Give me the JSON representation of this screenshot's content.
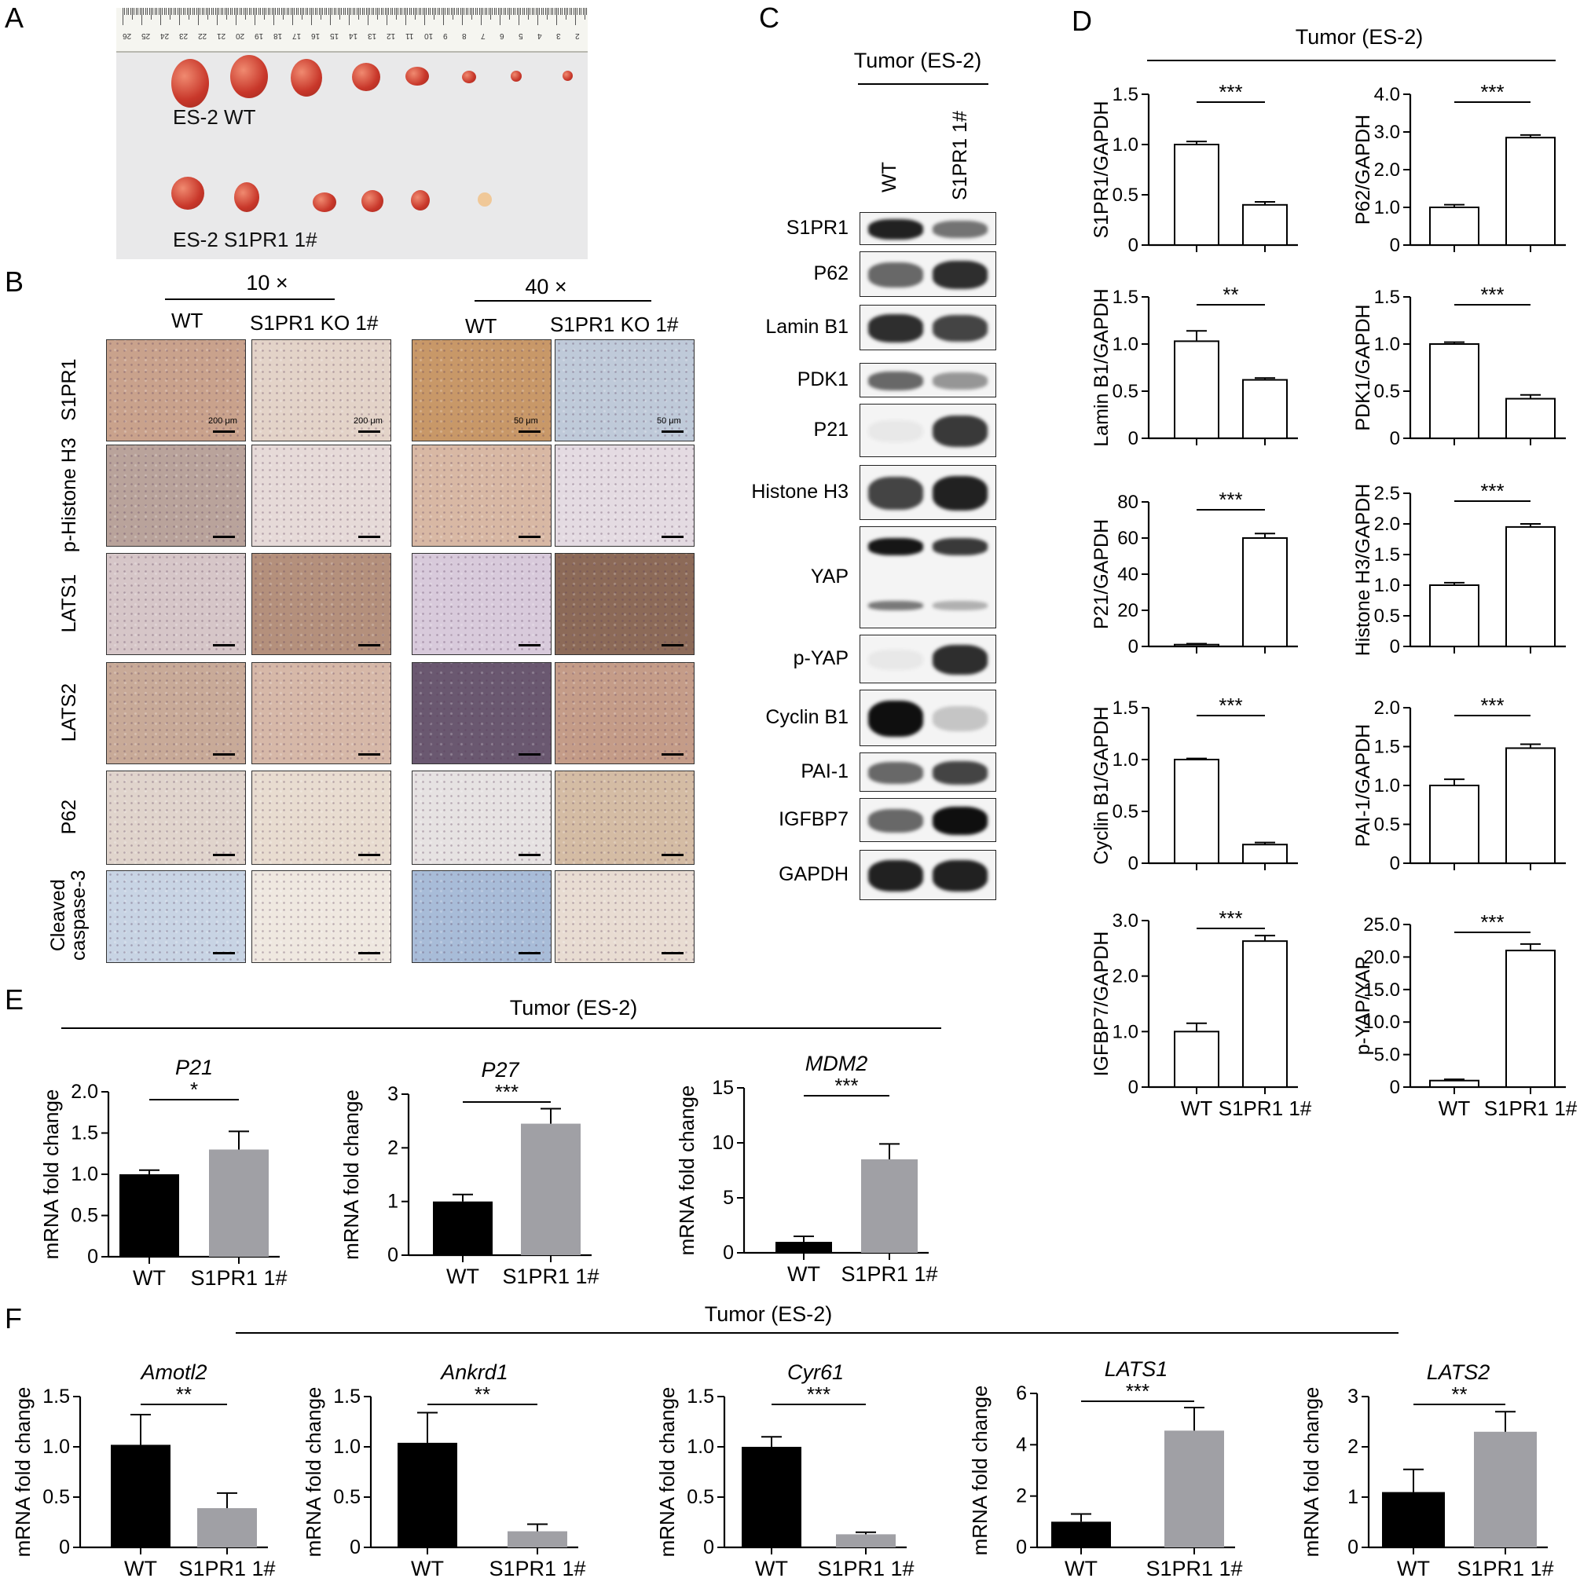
{
  "panel_letters": [
    "A",
    "B",
    "C",
    "D",
    "E",
    "F"
  ],
  "panelA": {
    "row_labels": [
      "ES-2 WT",
      "ES-2 S1PR1 1#"
    ],
    "ruler_numbers": [
      "26",
      "25",
      "24",
      "23",
      "22",
      "21",
      "20",
      "19",
      "18",
      "17",
      "16",
      "15",
      "14",
      "13",
      "12",
      "11",
      "10",
      "9",
      "8",
      "7",
      "6",
      "5",
      "4",
      "3",
      "2"
    ]
  },
  "panelB": {
    "mag_labels": [
      "10 ×",
      "40 ×"
    ],
    "col_labels": [
      "WT",
      "S1PR1 KO 1#",
      "WT",
      "S1PR1 KO 1#"
    ],
    "row_labels": [
      "S1PR1",
      "p-Histone H3",
      "LATS1",
      "LATS2",
      "P62",
      "Cleaved caspase-3"
    ],
    "scale_labels": [
      "200 μm",
      "200 μm",
      "50 μm",
      "50 μm"
    ]
  },
  "panelC": {
    "title": "Tumor (ES-2)",
    "lanes": [
      "WT",
      "S1PR1 1#"
    ],
    "proteins": [
      "S1PR1",
      "P62",
      "Lamin B1",
      "PDK1",
      "P21",
      "Histone H3",
      "YAP",
      "p-YAP",
      "Cyclin B1",
      "PAI-1",
      "IGFBP7",
      "GAPDH"
    ]
  },
  "panelD_title": "Tumor (ES-2)",
  "panelE_title": "Tumor (ES-2)",
  "panelF_title": "Tumor (ES-2)",
  "colors": {
    "wt_bar": "#000000",
    "ko_bar": "#a0a0a5",
    "open_bar": "#ffffff"
  },
  "chart_data": [
    {
      "id": "D1",
      "panel": "D",
      "type": "bar",
      "ylabel": "S1PR1/GAPDH",
      "categories": [
        "WT",
        "S1PR1 1#"
      ],
      "values": [
        1.0,
        0.4
      ],
      "errors": [
        0.03,
        0.03
      ],
      "ylim": [
        0,
        1.5
      ],
      "yticks": [
        "0",
        "0.5",
        "1.0",
        "1.5"
      ],
      "sig": "***",
      "style": "open",
      "show_xlabels": false
    },
    {
      "id": "D2",
      "panel": "D",
      "type": "bar",
      "ylabel": "P62/GAPDH",
      "categories": [
        "WT",
        "S1PR1 1#"
      ],
      "values": [
        1.0,
        2.85
      ],
      "errors": [
        0.07,
        0.07
      ],
      "ylim": [
        0,
        4.0
      ],
      "yticks": [
        "0",
        "1.0",
        "2.0",
        "3.0",
        "4.0"
      ],
      "sig": "***",
      "style": "open",
      "show_xlabels": false
    },
    {
      "id": "D3",
      "panel": "D",
      "type": "bar",
      "ylabel": "Lamin B1/GAPDH",
      "categories": [
        "WT",
        "S1PR1 1#"
      ],
      "values": [
        1.03,
        0.62
      ],
      "errors": [
        0.11,
        0.02
      ],
      "ylim": [
        0,
        1.5
      ],
      "yticks": [
        "0",
        "0.5",
        "1.0",
        "1.5"
      ],
      "sig": "**",
      "style": "open",
      "show_xlabels": false
    },
    {
      "id": "D4",
      "panel": "D",
      "type": "bar",
      "ylabel": "PDK1/GAPDH",
      "categories": [
        "WT",
        "S1PR1 1#"
      ],
      "values": [
        1.0,
        0.42
      ],
      "errors": [
        0.02,
        0.04
      ],
      "ylim": [
        0,
        1.5
      ],
      "yticks": [
        "0",
        "0.5",
        "1.0",
        "1.5"
      ],
      "sig": "***",
      "style": "open",
      "show_xlabels": false
    },
    {
      "id": "D5",
      "panel": "D",
      "type": "bar",
      "ylabel": "P21/GAPDH",
      "categories": [
        "WT",
        "S1PR1 1#"
      ],
      "values": [
        1.0,
        60
      ],
      "errors": [
        0.5,
        2.5
      ],
      "ylim": [
        0,
        80
      ],
      "yticks": [
        "0",
        "20",
        "40",
        "60",
        "80"
      ],
      "sig": "***",
      "style": "open",
      "show_xlabels": false
    },
    {
      "id": "D6",
      "panel": "D",
      "type": "bar",
      "ylabel": "Histone H3/GAPDH",
      "categories": [
        "WT",
        "S1PR1 1#"
      ],
      "values": [
        1.0,
        1.95
      ],
      "errors": [
        0.04,
        0.05
      ],
      "ylim": [
        0,
        2.5
      ],
      "yticks": [
        "0",
        "0.5",
        "1.0",
        "1.5",
        "2.0",
        "2.5"
      ],
      "sig": "***",
      "style": "open",
      "show_xlabels": false
    },
    {
      "id": "D7",
      "panel": "D",
      "type": "bar",
      "ylabel": "Cyclin B1/GAPDH",
      "categories": [
        "WT",
        "S1PR1 1#"
      ],
      "values": [
        1.0,
        0.18
      ],
      "errors": [
        0.01,
        0.02
      ],
      "ylim": [
        0,
        1.5
      ],
      "yticks": [
        "0",
        "0.5",
        "1.0",
        "1.5"
      ],
      "sig": "***",
      "style": "open",
      "show_xlabels": false
    },
    {
      "id": "D8",
      "panel": "D",
      "type": "bar",
      "ylabel": "PAI-1/GAPDH",
      "categories": [
        "WT",
        "S1PR1 1#"
      ],
      "values": [
        1.0,
        1.48
      ],
      "errors": [
        0.08,
        0.05
      ],
      "ylim": [
        0,
        2.0
      ],
      "yticks": [
        "0",
        "0.5",
        "1.0",
        "1.5",
        "2.0"
      ],
      "sig": "***",
      "style": "open",
      "show_xlabels": false
    },
    {
      "id": "D9",
      "panel": "D",
      "type": "bar",
      "ylabel": "IGFBP7/GAPDH",
      "categories": [
        "WT",
        "S1PR1 1#"
      ],
      "values": [
        1.0,
        2.63
      ],
      "errors": [
        0.15,
        0.1
      ],
      "ylim": [
        0,
        3.0
      ],
      "yticks": [
        "0",
        "1.0",
        "2.0",
        "3.0"
      ],
      "sig": "***",
      "style": "open",
      "show_xlabels": true
    },
    {
      "id": "D10",
      "panel": "D",
      "type": "bar",
      "ylabel": "p-YAP/YAP",
      "categories": [
        "WT",
        "S1PR1 1#"
      ],
      "values": [
        1.0,
        21.0
      ],
      "errors": [
        0.2,
        1.0
      ],
      "ylim": [
        0,
        25.0
      ],
      "yticks": [
        "0",
        "5.0",
        "10.0",
        "15.0",
        "20.0",
        "25.0"
      ],
      "sig": "***",
      "style": "open",
      "show_xlabels": true
    },
    {
      "id": "E1",
      "panel": "E",
      "type": "bar",
      "title": "P21",
      "ylabel": "mRNA fold change",
      "categories": [
        "WT",
        "S1PR1 1#"
      ],
      "values": [
        1.0,
        1.3
      ],
      "errors": [
        0.05,
        0.22
      ],
      "ylim": [
        0,
        2.0
      ],
      "yticks": [
        "0",
        "0.5",
        "1.0",
        "1.5",
        "2.0"
      ],
      "sig": "*",
      "style": "filled",
      "show_xlabels": true
    },
    {
      "id": "E2",
      "panel": "E",
      "type": "bar",
      "title": "P27",
      "ylabel": "mRNA fold change",
      "categories": [
        "WT",
        "S1PR1 1#"
      ],
      "values": [
        1.0,
        2.45
      ],
      "errors": [
        0.13,
        0.28
      ],
      "ylim": [
        0,
        3
      ],
      "yticks": [
        "0",
        "1",
        "2",
        "3"
      ],
      "sig": "***",
      "style": "filled",
      "show_xlabels": true
    },
    {
      "id": "E3",
      "panel": "E",
      "type": "bar",
      "title": "MDM2",
      "ylabel": "mRNA fold change",
      "categories": [
        "WT",
        "S1PR1 1#"
      ],
      "values": [
        1.0,
        8.5
      ],
      "errors": [
        0.5,
        1.4
      ],
      "ylim": [
        0,
        15
      ],
      "yticks": [
        "0",
        "5",
        "10",
        "15"
      ],
      "sig": "***",
      "style": "filled",
      "show_xlabels": true
    },
    {
      "id": "F1",
      "panel": "F",
      "type": "bar",
      "title": "Amotl2",
      "ylabel": "mRNA fold change",
      "categories": [
        "WT",
        "S1PR1 1#"
      ],
      "values": [
        1.02,
        0.39
      ],
      "errors": [
        0.3,
        0.15
      ],
      "ylim": [
        0,
        1.5
      ],
      "yticks": [
        "0",
        "0.5",
        "1.0",
        "1.5"
      ],
      "sig": "**",
      "style": "filled",
      "show_xlabels": true
    },
    {
      "id": "F2",
      "panel": "F",
      "type": "bar",
      "title": "Ankrd1",
      "ylabel": "mRNA fold change",
      "categories": [
        "WT",
        "S1PR1 1#"
      ],
      "values": [
        1.04,
        0.16
      ],
      "errors": [
        0.3,
        0.07
      ],
      "ylim": [
        0,
        1.5
      ],
      "yticks": [
        "0",
        "0.5",
        "1.0",
        "1.5"
      ],
      "sig": "**",
      "style": "filled",
      "show_xlabels": true
    },
    {
      "id": "F3",
      "panel": "F",
      "type": "bar",
      "title": "Cyr61",
      "ylabel": "mRNA fold change",
      "categories": [
        "WT",
        "S1PR1 1#"
      ],
      "values": [
        1.0,
        0.13
      ],
      "errors": [
        0.1,
        0.02
      ],
      "ylim": [
        0,
        1.5
      ],
      "yticks": [
        "0",
        "0.5",
        "1.0",
        "1.5"
      ],
      "sig": "***",
      "style": "filled",
      "show_xlabels": true
    },
    {
      "id": "F4",
      "panel": "F",
      "type": "bar",
      "title": "LATS1",
      "ylabel": "mRNA fold change",
      "categories": [
        "WT",
        "S1PR1 1#"
      ],
      "values": [
        1.0,
        4.55
      ],
      "errors": [
        0.3,
        0.9
      ],
      "ylim": [
        0,
        6
      ],
      "yticks": [
        "0",
        "2",
        "4",
        "6"
      ],
      "sig": "***",
      "style": "filled",
      "show_xlabels": true
    },
    {
      "id": "F5",
      "panel": "F",
      "type": "bar",
      "title": "LATS2",
      "ylabel": "mRNA fold change",
      "categories": [
        "WT",
        "S1PR1 1#"
      ],
      "values": [
        1.1,
        2.3
      ],
      "errors": [
        0.45,
        0.4
      ],
      "ylim": [
        0,
        3
      ],
      "yticks": [
        "0",
        "1",
        "2",
        "3"
      ],
      "sig": "**",
      "style": "filled",
      "show_xlabels": true
    }
  ]
}
